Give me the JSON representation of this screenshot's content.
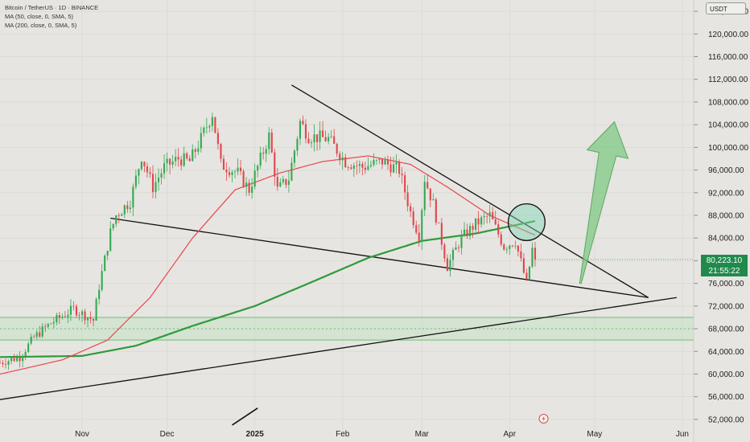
{
  "legend": {
    "title": "Bitcoin / TetherUS · 1D · BINANCE",
    "ma50": "MA (50, close, 0, SMA, 5)",
    "ma200": "MA (200, close, 0, SMA, 5)"
  },
  "currency_label": "USDT",
  "current_price": {
    "value": "80,223.10",
    "countdown": "21:55:22"
  },
  "colors": {
    "up": "#35a853",
    "down": "#e0474c",
    "ma50": "#e8474c",
    "ma200": "#2e9a3a",
    "background": "#e6e5e1"
  },
  "chart_data": {
    "type": "candlestick",
    "y_ticks": [
      52000,
      56000,
      60000,
      64000,
      68000,
      72000,
      76000,
      80000,
      84000,
      88000,
      92000,
      96000,
      100000,
      104000,
      108000,
      112000,
      116000,
      120000,
      124000
    ],
    "y_tick_labels": [
      "52,000.00",
      "56,000.00",
      "60,000.00",
      "64,000.00",
      "68,000.00",
      "72,000.00",
      "76,000.00",
      "80,000.00",
      "84,000.00",
      "88,000.00",
      "92,000.00",
      "96,000.00",
      "100,000.00",
      "104,000.00",
      "108,000.00",
      "112,000.00",
      "116,000.00",
      "120,000.00",
      "124,000.00"
    ],
    "ylim": [
      50000,
      126000
    ],
    "x_ticks": [
      "Nov",
      "Dec",
      "2025",
      "Feb",
      "Mar",
      "Apr",
      "May",
      "Jun"
    ],
    "x_range": [
      "2024-10-03",
      "2025-06-05"
    ],
    "x_tick_dates": [
      "2024-11-01",
      "2024-12-01",
      "2025-01-01",
      "2025-02-01",
      "2025-03-01",
      "2025-04-01",
      "2025-05-01",
      "2025-06-01"
    ],
    "ohlc_anchors": [
      [
        "2024-10-03",
        62000
      ],
      [
        "2024-10-10",
        63000
      ],
      [
        "2024-10-15",
        66500
      ],
      [
        "2024-10-21",
        69000
      ],
      [
        "2024-10-29",
        71500
      ],
      [
        "2024-11-05",
        69500
      ],
      [
        "2024-11-07",
        75500
      ],
      [
        "2024-11-11",
        85000
      ],
      [
        "2024-11-13",
        88000
      ],
      [
        "2024-11-18",
        90500
      ],
      [
        "2024-11-22",
        98500
      ],
      [
        "2024-11-26",
        93000
      ],
      [
        "2024-11-30",
        96500
      ],
      [
        "2024-12-05",
        98000
      ],
      [
        "2024-12-09",
        97500
      ],
      [
        "2024-12-13",
        101500
      ],
      [
        "2024-12-17",
        106000
      ],
      [
        "2024-12-20",
        97000
      ],
      [
        "2024-12-26",
        95500
      ],
      [
        "2024-12-30",
        92500
      ],
      [
        "2025-01-06",
        102000
      ],
      [
        "2025-01-09",
        92500
      ],
      [
        "2025-01-13",
        94500
      ],
      [
        "2025-01-17",
        104500
      ],
      [
        "2025-01-20",
        102000
      ],
      [
        "2025-01-27",
        101500
      ],
      [
        "2025-02-02",
        97500
      ],
      [
        "2025-02-08",
        96500
      ],
      [
        "2025-02-15",
        97500
      ],
      [
        "2025-02-21",
        96000
      ],
      [
        "2025-02-25",
        88500
      ],
      [
        "2025-02-28",
        84500
      ],
      [
        "2025-03-02",
        94500
      ],
      [
        "2025-03-05",
        90000
      ],
      [
        "2025-03-10",
        79000
      ],
      [
        "2025-03-15",
        84000
      ],
      [
        "2025-03-20",
        86500
      ],
      [
        "2025-03-25",
        88000
      ],
      [
        "2025-03-30",
        82500
      ],
      [
        "2025-04-03",
        83500
      ],
      [
        "2025-04-07",
        76000
      ],
      [
        "2025-04-09",
        82000
      ],
      [
        "2025-04-10",
        80223
      ]
    ],
    "ma50": [
      [
        "2024-10-03",
        60000
      ],
      [
        "2024-10-25",
        62500
      ],
      [
        "2024-11-10",
        66000
      ],
      [
        "2024-11-25",
        73500
      ],
      [
        "2024-12-10",
        84000
      ],
      [
        "2024-12-25",
        92500
      ],
      [
        "2025-01-10",
        95500
      ],
      [
        "2025-01-25",
        97500
      ],
      [
        "2025-02-10",
        98500
      ],
      [
        "2025-02-25",
        97000
      ],
      [
        "2025-03-10",
        93000
      ],
      [
        "2025-03-25",
        88000
      ],
      [
        "2025-04-10",
        84500
      ]
    ],
    "ma200": [
      [
        "2024-10-03",
        63000
      ],
      [
        "2024-11-01",
        63200
      ],
      [
        "2024-11-20",
        65000
      ],
      [
        "2024-12-10",
        68500
      ],
      [
        "2025-01-01",
        72000
      ],
      [
        "2025-01-20",
        76000
      ],
      [
        "2025-02-10",
        80500
      ],
      [
        "2025-03-01",
        83500
      ],
      [
        "2025-03-20",
        84800
      ],
      [
        "2025-04-10",
        87000
      ]
    ],
    "annotations": {
      "upper_trendline": [
        [
          "2025-01-14",
          111000
        ],
        [
          "2025-05-20",
          73500
        ]
      ],
      "lower_trendline": [
        [
          "2024-11-11",
          87500
        ],
        [
          "2025-05-20",
          73500
        ]
      ],
      "rising_support": [
        [
          "2024-10-03",
          55500
        ],
        [
          "2025-05-30",
          73500
        ]
      ],
      "short_segment": [
        [
          "2024-12-24",
          51000
        ],
        [
          "2025-01-02",
          54000
        ]
      ],
      "support_band": [
        66000,
        70000
      ],
      "support_dotted": 68000,
      "circle_center": [
        "2025-04-07",
        86800
      ],
      "circle_radius_days": 6.5,
      "arrow_from": [
        "2025-04-26",
        76000
      ],
      "arrow_to": [
        "2025-05-08",
        104500
      ]
    }
  }
}
